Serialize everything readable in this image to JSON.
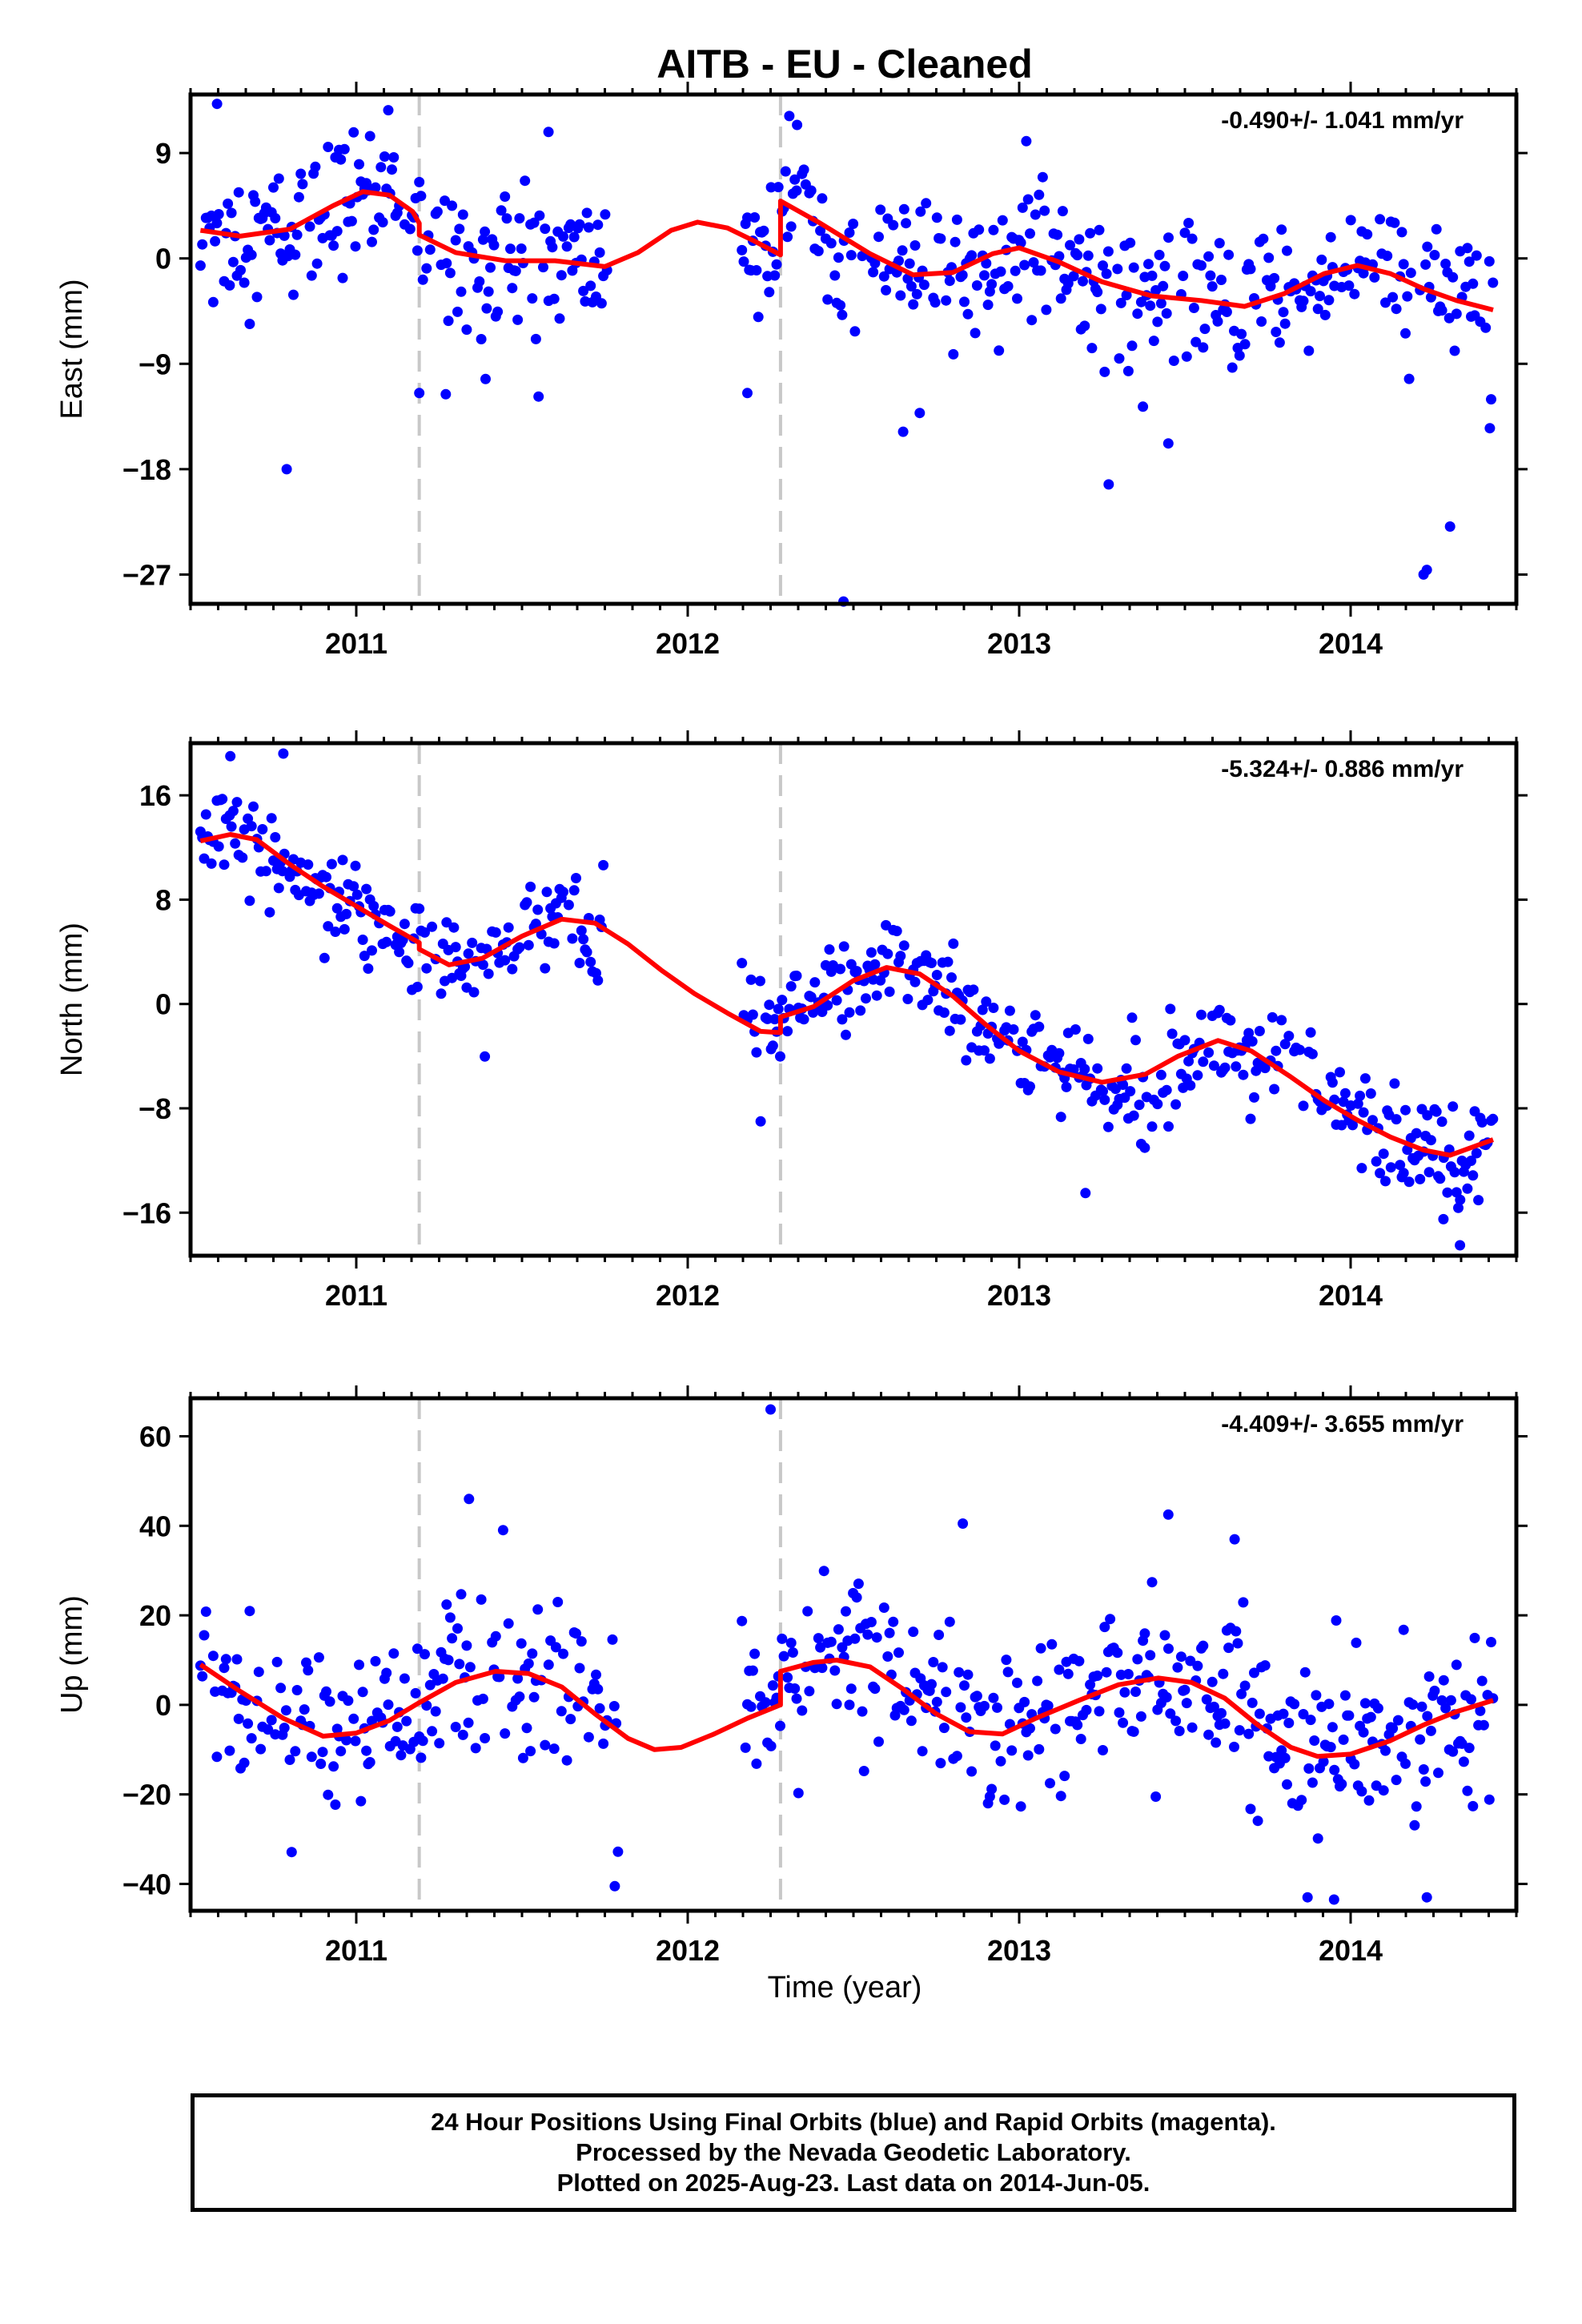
{
  "title": "AITB  - EU - Cleaned",
  "xlabel": "Time (year)",
  "colors": {
    "final_orbits": "#0000ff",
    "model": "#ff0000",
    "offsets": "#c8c8c8"
  },
  "footer": {
    "line1": "24 Hour Positions Using Final Orbits (blue) and Rapid Orbits (magenta).",
    "line2": "Processed by the Nevada Geodetic Laboratory.",
    "line3": "Plotted on 2025-Aug-23. Last data on 2014-Jun-05."
  },
  "chart_data": [
    {
      "type": "scatter",
      "component": "East",
      "ylabel": "East (mm)",
      "rate": "-0.490+/- 1.041 mm/yr",
      "xlim": [
        2010.5,
        2014.5
      ],
      "ylim": [
        -29.5,
        14.0
      ],
      "yticks": [
        9,
        0,
        -9,
        -18,
        -27
      ],
      "ytick_labels": [
        "9",
        "0",
        "−9",
        "−18",
        "−27"
      ],
      "xticks": [
        2011,
        2012,
        2013,
        2014
      ],
      "offsets": [
        2011.19,
        2012.28
      ],
      "model_segments": [
        [
          [
            2010.53,
            2.4
          ],
          [
            2010.65,
            1.9
          ],
          [
            2010.8,
            2.5
          ],
          [
            2010.93,
            4.5
          ],
          [
            2011.02,
            5.7
          ],
          [
            2011.1,
            5.4
          ],
          [
            2011.17,
            4.0
          ],
          [
            2011.19,
            3.0
          ],
          [
            2011.19,
            2.0
          ],
          [
            2011.3,
            0.5
          ],
          [
            2011.45,
            -0.2
          ],
          [
            2011.6,
            -0.2
          ],
          [
            2011.75,
            -0.7
          ],
          [
            2011.85,
            0.5
          ],
          [
            2011.95,
            2.4
          ],
          [
            2012.03,
            3.1
          ],
          [
            2012.12,
            2.6
          ],
          [
            2012.2,
            1.5
          ],
          [
            2012.28,
            0.3
          ],
          [
            2012.28,
            4.9
          ],
          [
            2012.4,
            3.0
          ],
          [
            2012.55,
            0.4
          ],
          [
            2012.68,
            -1.4
          ],
          [
            2012.8,
            -1.2
          ],
          [
            2012.92,
            0.4
          ],
          [
            2013.0,
            0.9
          ],
          [
            2013.12,
            -0.3
          ],
          [
            2013.25,
            -2.0
          ],
          [
            2013.4,
            -3.2
          ],
          [
            2013.55,
            -3.6
          ],
          [
            2013.68,
            -4.1
          ],
          [
            2013.8,
            -3.0
          ],
          [
            2013.92,
            -1.3
          ],
          [
            2014.02,
            -0.6
          ],
          [
            2014.12,
            -1.3
          ],
          [
            2014.22,
            -2.6
          ],
          [
            2014.32,
            -3.6
          ],
          [
            2014.43,
            -4.4
          ]
        ]
      ],
      "outliers": [
        [
          2010.58,
          13.2
        ],
        [
          2010.79,
          -18.0
        ],
        [
          2011.19,
          -11.5
        ],
        [
          2011.27,
          -11.6
        ],
        [
          2011.39,
          -10.3
        ],
        [
          2011.55,
          -11.8
        ],
        [
          2011.58,
          10.8
        ],
        [
          2012.18,
          -11.5
        ],
        [
          2012.33,
          11.4
        ],
        [
          2012.47,
          -29.3
        ],
        [
          2012.65,
          -14.8
        ],
        [
          2012.7,
          -13.2
        ],
        [
          2013.27,
          -19.3
        ],
        [
          2013.45,
          -15.8
        ],
        [
          2014.22,
          -27.0
        ],
        [
          2014.23,
          -26.6
        ],
        [
          2014.3,
          -22.9
        ],
        [
          2014.42,
          -14.5
        ]
      ],
      "gaps": [
        [
          2011.76,
          2012.16
        ]
      ],
      "noise_sd": 2.9
    },
    {
      "type": "scatter",
      "component": "North",
      "ylabel": "North (mm)",
      "rate": "-5.324+/- 0.886 mm/yr",
      "xlim": [
        2010.5,
        2014.5
      ],
      "ylim": [
        -19.3,
        20.0
      ],
      "yticks": [
        16,
        8,
        0,
        -8,
        -16
      ],
      "ytick_labels": [
        "16",
        "8",
        "0",
        "−8",
        "−16"
      ],
      "xticks": [
        2011,
        2012,
        2013,
        2014
      ],
      "offsets": [
        2011.19,
        2012.28
      ],
      "model_segments": [
        [
          [
            2010.53,
            12.5
          ],
          [
            2010.62,
            13.0
          ],
          [
            2010.7,
            12.6
          ],
          [
            2010.8,
            10.7
          ],
          [
            2010.9,
            9.0
          ],
          [
            2011.0,
            7.5
          ],
          [
            2011.1,
            6.0
          ],
          [
            2011.19,
            4.7
          ],
          [
            2011.19,
            4.2
          ],
          [
            2011.28,
            3.0
          ],
          [
            2011.38,
            3.5
          ],
          [
            2011.5,
            5.2
          ],
          [
            2011.62,
            6.5
          ],
          [
            2011.72,
            6.2
          ],
          [
            2011.82,
            4.6
          ],
          [
            2011.92,
            2.6
          ],
          [
            2012.02,
            0.8
          ],
          [
            2012.12,
            -0.7
          ],
          [
            2012.22,
            -2.1
          ],
          [
            2012.28,
            -2.2
          ],
          [
            2012.28,
            -1.0
          ],
          [
            2012.38,
            -0.2
          ],
          [
            2012.5,
            1.8
          ],
          [
            2012.6,
            2.8
          ],
          [
            2012.7,
            2.3
          ],
          [
            2012.8,
            0.6
          ],
          [
            2012.9,
            -1.6
          ],
          [
            2013.0,
            -3.6
          ],
          [
            2013.12,
            -5.2
          ],
          [
            2013.25,
            -6.0
          ],
          [
            2013.38,
            -5.4
          ],
          [
            2013.48,
            -4.0
          ],
          [
            2013.6,
            -2.8
          ],
          [
            2013.7,
            -3.6
          ],
          [
            2013.82,
            -5.6
          ],
          [
            2013.92,
            -7.4
          ],
          [
            2014.02,
            -8.9
          ],
          [
            2014.12,
            -10.2
          ],
          [
            2014.22,
            -11.2
          ],
          [
            2014.3,
            -11.6
          ],
          [
            2014.43,
            -10.4
          ]
        ]
      ],
      "outliers": [
        [
          2010.62,
          19.0
        ],
        [
          2010.78,
          19.2
        ],
        [
          2012.22,
          -9.0
        ],
        [
          2013.2,
          -14.5
        ],
        [
          2014.33,
          -18.5
        ],
        [
          2014.28,
          -16.5
        ]
      ],
      "gaps": [
        [
          2011.76,
          2012.16
        ]
      ],
      "noise_sd": 1.9
    },
    {
      "type": "scatter",
      "component": "Up",
      "ylabel": "Up (mm)",
      "rate": "-4.409+/- 3.655 mm/yr",
      "xlim": [
        2010.5,
        2014.5
      ],
      "ylim": [
        -46.0,
        68.5
      ],
      "yticks": [
        60,
        40,
        20,
        0,
        -20,
        -40
      ],
      "ytick_labels": [
        "60",
        "40",
        "20",
        "0",
        "−20",
        "−40"
      ],
      "xticks": [
        2011,
        2012,
        2013,
        2014
      ],
      "offsets": [
        2011.19,
        2012.28
      ],
      "model_segments": [
        [
          [
            2010.53,
            9.0
          ],
          [
            2010.65,
            3.0
          ],
          [
            2010.78,
            -3.0
          ],
          [
            2010.9,
            -7.0
          ],
          [
            2011.0,
            -6.3
          ],
          [
            2011.1,
            -3.5
          ],
          [
            2011.19,
            0.5
          ],
          [
            2011.3,
            5.0
          ],
          [
            2011.42,
            7.5
          ],
          [
            2011.52,
            7.0
          ],
          [
            2011.62,
            4.0
          ],
          [
            2011.72,
            -2.0
          ],
          [
            2011.82,
            -7.5
          ],
          [
            2011.9,
            -10.0
          ],
          [
            2011.98,
            -9.5
          ],
          [
            2012.08,
            -6.5
          ],
          [
            2012.18,
            -3.0
          ],
          [
            2012.28,
            0.0
          ],
          [
            2012.28,
            7.5
          ],
          [
            2012.38,
            9.5
          ],
          [
            2012.45,
            10.0
          ],
          [
            2012.55,
            8.5
          ],
          [
            2012.65,
            3.5
          ],
          [
            2012.75,
            -2.0
          ],
          [
            2012.85,
            -6.0
          ],
          [
            2012.95,
            -6.5
          ],
          [
            2013.05,
            -3.0
          ],
          [
            2013.18,
            1.0
          ],
          [
            2013.3,
            4.5
          ],
          [
            2013.42,
            6.0
          ],
          [
            2013.52,
            5.0
          ],
          [
            2013.62,
            1.5
          ],
          [
            2013.72,
            -4.5
          ],
          [
            2013.82,
            -9.5
          ],
          [
            2013.9,
            -11.5
          ],
          [
            2014.0,
            -11.0
          ],
          [
            2014.12,
            -8.0
          ],
          [
            2014.22,
            -4.5
          ],
          [
            2014.32,
            -1.5
          ],
          [
            2014.43,
            1.0
          ]
        ]
      ],
      "outliers": [
        [
          2011.34,
          46.0
        ],
        [
          2011.78,
          -40.5
        ],
        [
          2012.25,
          66.0
        ],
        [
          2012.83,
          40.5
        ],
        [
          2013.45,
          42.5
        ],
        [
          2013.65,
          37.0
        ],
        [
          2013.87,
          -43.0
        ],
        [
          2013.95,
          -43.5
        ],
        [
          2014.23,
          -43.0
        ]
      ],
      "gaps": [
        [
          2011.79,
          2012.16
        ]
      ],
      "noise_sd": 9.0
    }
  ]
}
